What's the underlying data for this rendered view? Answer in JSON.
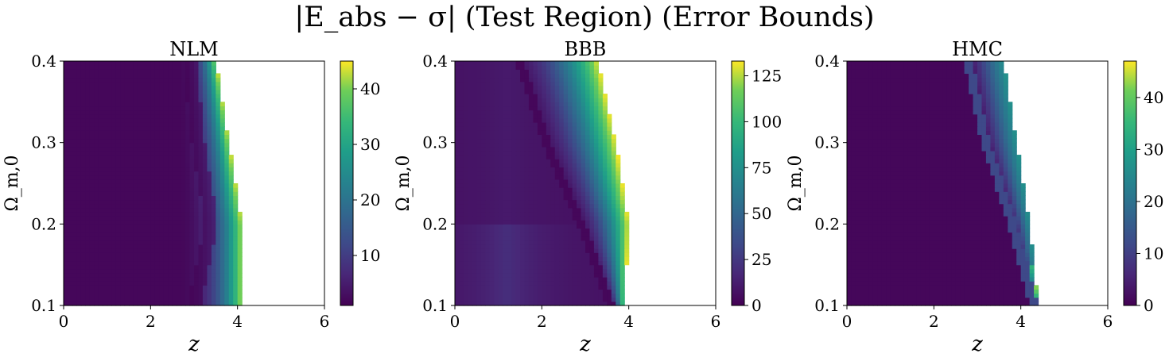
{
  "figure": {
    "title": "|E_abs − σ| (Test Region) (Error Bounds)"
  },
  "chart_data": [
    {
      "type": "heatmap",
      "title": "NLM",
      "xlabel": "z",
      "ylabel": "Ω_m,0",
      "xlim": [
        0,
        6
      ],
      "ylim": [
        0.1,
        0.4
      ],
      "x_ticks": [
        "0",
        "2",
        "4",
        "6"
      ],
      "y_ticks": [
        "0.1",
        "0.2",
        "0.3",
        "0.4"
      ],
      "colormap": "viridis",
      "colorbar_range": [
        1,
        45
      ],
      "colorbar_ticks": [
        "10",
        "20",
        "30",
        "40"
      ],
      "boundary": {
        "omega": [
          0.1,
          0.2,
          0.3,
          0.4
        ],
        "z_max": [
          4.1,
          4.1,
          3.8,
          3.5
        ]
      },
      "features": {
        "valley_z_at_omega": [
          [
            0.1,
            3.0
          ],
          [
            0.2,
            3.4
          ],
          [
            0.3,
            3.1
          ],
          [
            0.4,
            2.9
          ]
        ]
      }
    },
    {
      "type": "heatmap",
      "title": "BBB",
      "xlabel": "z",
      "ylabel": "Ω_m,0",
      "xlim": [
        0,
        6
      ],
      "ylim": [
        0.1,
        0.4
      ],
      "x_ticks": [
        "0",
        "2",
        "4",
        "6"
      ],
      "y_ticks": [
        "0.1",
        "0.2",
        "0.3",
        "0.4"
      ],
      "colormap": "viridis",
      "colorbar_range": [
        0,
        133
      ],
      "colorbar_ticks": [
        "0",
        "25",
        "50",
        "75",
        "100",
        "125"
      ],
      "boundary": {
        "omega": [
          0.1,
          0.2,
          0.3,
          0.4
        ],
        "z_max": [
          3.9,
          4.0,
          3.7,
          3.3
        ]
      },
      "features": {
        "valley_z_at_omega": [
          [
            0.1,
            3.6
          ],
          [
            0.2,
            2.9
          ],
          [
            0.3,
            2.1
          ],
          [
            0.4,
            1.5
          ]
        ]
      }
    },
    {
      "type": "heatmap",
      "title": "HMC",
      "xlabel": "z",
      "ylabel": "Ω_m,0",
      "xlim": [
        0,
        6
      ],
      "ylim": [
        0.1,
        0.4
      ],
      "x_ticks": [
        "0",
        "2",
        "4",
        "6"
      ],
      "y_ticks": [
        "0.1",
        "0.2",
        "0.3",
        "0.4"
      ],
      "colormap": "viridis",
      "colorbar_range": [
        0,
        47
      ],
      "colorbar_ticks": [
        "0",
        "10",
        "20",
        "30",
        "40"
      ],
      "boundary": {
        "omega": [
          0.1,
          0.2,
          0.3,
          0.4
        ],
        "z_max": [
          4.4,
          4.2,
          3.9,
          3.6
        ]
      },
      "features": {
        "valley_z_at_omega": [
          [
            0.1,
            4.3
          ],
          [
            0.2,
            3.8
          ],
          [
            0.3,
            3.2
          ],
          [
            0.4,
            2.8
          ]
        ]
      }
    }
  ]
}
